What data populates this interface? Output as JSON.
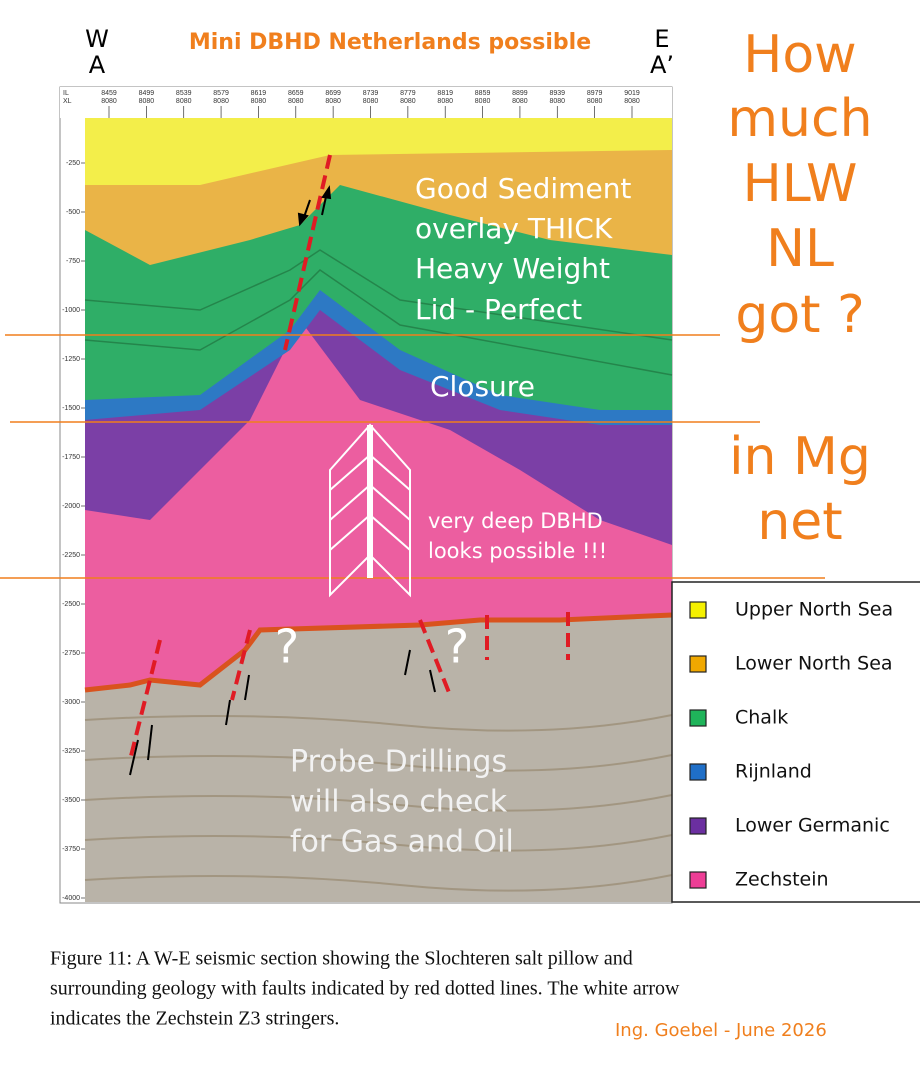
{
  "header": {
    "title": "Mini DBHD Netherlands possible",
    "west": [
      "W",
      "A"
    ],
    "east": [
      "E",
      "A’"
    ]
  },
  "question": {
    "lines": [
      "How",
      "much",
      "HLW",
      "NL",
      "got ?"
    ],
    "sub": [
      "in Mg",
      "net"
    ]
  },
  "section": {
    "axis_labels": [
      "IL",
      "XL"
    ],
    "traces": [
      {
        "il": "8459",
        "xl": "8080"
      },
      {
        "il": "8499",
        "xl": "8080"
      },
      {
        "il": "8539",
        "xl": "8080"
      },
      {
        "il": "8579",
        "xl": "8080"
      },
      {
        "il": "8619",
        "xl": "8080"
      },
      {
        "il": "8659",
        "xl": "8080"
      },
      {
        "il": "8699",
        "xl": "8080"
      },
      {
        "il": "8739",
        "xl": "8080"
      },
      {
        "il": "8779",
        "xl": "8080"
      },
      {
        "il": "8819",
        "xl": "8080"
      },
      {
        "il": "8859",
        "xl": "8080"
      },
      {
        "il": "8899",
        "xl": "8080"
      },
      {
        "il": "8939",
        "xl": "8080"
      },
      {
        "il": "8979",
        "xl": "8080"
      },
      {
        "il": "9019",
        "xl": "8080"
      }
    ],
    "depth_ticks": [
      "-250",
      "-500",
      "-750",
      "-1000",
      "-1250",
      "-1500",
      "-1750",
      "-2000",
      "-2250",
      "-2500",
      "-2750",
      "-3000",
      "-3250",
      "-3500",
      "-3750",
      "-4000"
    ]
  },
  "annotations": {
    "sediment": [
      "Good Sediment",
      "overlay THICK",
      "Heavy Weight",
      "Lid - Perfect"
    ],
    "closure": "Closure",
    "dbhd": [
      "very deep DBHD",
      "looks possible !!!"
    ],
    "questions": [
      "?",
      "?"
    ],
    "probe": [
      "Probe Drillings",
      "will also check",
      "for Gas and Oil"
    ]
  },
  "legend": [
    {
      "label": "Upper North Sea",
      "color": "#f5f000"
    },
    {
      "label": "Lower North Sea",
      "color": "#f0a800"
    },
    {
      "label": "Chalk",
      "color": "#1fb45a"
    },
    {
      "label": "Rijnland",
      "color": "#1f6fc8"
    },
    {
      "label": "Lower Germanic",
      "color": "#6b2fa0"
    },
    {
      "label": "Zechstein",
      "color": "#ee3e96"
    }
  ],
  "caption": {
    "lines": [
      "Figure 11: A W-E seismic section showing the Slochteren salt pillow and",
      "surrounding geology with faults indicated by red dotted lines. The white arrow",
      "indicates the Zechstein Z3 stringers."
    ],
    "credit": "Ing. Goebel - June 2026"
  }
}
